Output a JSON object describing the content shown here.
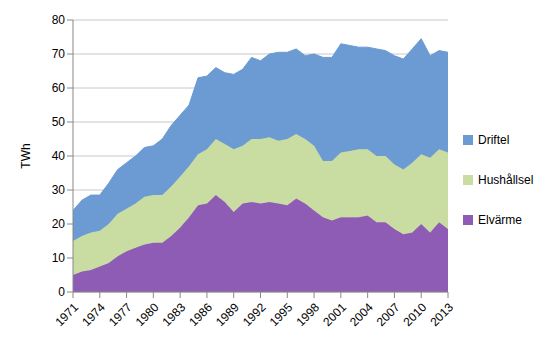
{
  "chart_data": {
    "type": "area",
    "stacked": true,
    "y_label": "TWh",
    "x": [
      1971,
      1972,
      1973,
      1974,
      1975,
      1976,
      1977,
      1978,
      1979,
      1980,
      1981,
      1982,
      1983,
      1984,
      1985,
      1986,
      1987,
      1988,
      1989,
      1990,
      1991,
      1992,
      1993,
      1994,
      1995,
      1996,
      1997,
      1998,
      1999,
      2000,
      2001,
      2002,
      2003,
      2004,
      2005,
      2006,
      2007,
      2008,
      2009,
      2010,
      2011,
      2012,
      2013
    ],
    "xlim": [
      1971,
      2013
    ],
    "xticks": [
      1971,
      1974,
      1977,
      1980,
      1983,
      1986,
      1989,
      1992,
      1995,
      1998,
      2001,
      2004,
      2007,
      2010,
      2013
    ],
    "ylim": [
      0,
      80
    ],
    "yticks": [
      0,
      10,
      20,
      30,
      40,
      50,
      60,
      70,
      80
    ],
    "grid": true,
    "legend": "right",
    "series": [
      {
        "name": "Elvärme",
        "color": "#8e5bb5",
        "values": [
          5,
          6,
          6.5,
          7.5,
          8.5,
          10.5,
          12,
          13,
          14,
          14.5,
          14.5,
          16.5,
          19,
          22,
          25.5,
          26,
          28.5,
          26.5,
          23.5,
          26,
          26.5,
          26,
          26.5,
          26,
          25.5,
          27.5,
          26,
          24,
          22,
          21,
          22,
          22,
          22,
          22.5,
          20.5,
          20.5,
          18.5,
          17,
          17.5,
          20,
          17.5,
          20.5,
          18.5
        ]
      },
      {
        "name": "Hushållsel",
        "color": "#c9dca2",
        "values": [
          10,
          10.5,
          11,
          10.5,
          11.5,
          12.5,
          12.5,
          13,
          14,
          14,
          14,
          14.5,
          15,
          15,
          15,
          16,
          16.5,
          17,
          18.5,
          17,
          18.5,
          19,
          19,
          18.5,
          19.5,
          19,
          19,
          19,
          16.5,
          17.5,
          19,
          19.5,
          20,
          19.5,
          19.5,
          19.5,
          19,
          19,
          20.5,
          20.5,
          22,
          21.5,
          22.5
        ]
      },
      {
        "name": "Driftel",
        "color": "#6b9bd2",
        "values": [
          9,
          10.5,
          11,
          10.5,
          12,
          13,
          13.5,
          14,
          14.5,
          14.5,
          16.5,
          18,
          18,
          18,
          22.5,
          21.5,
          21,
          21,
          22,
          22.5,
          24,
          23,
          24.5,
          26,
          25.5,
          25,
          24.5,
          27,
          30.5,
          30.5,
          32,
          31,
          30,
          30,
          31.5,
          31,
          32,
          32.5,
          33.5,
          34,
          30,
          29,
          29.5
        ]
      }
    ]
  }
}
